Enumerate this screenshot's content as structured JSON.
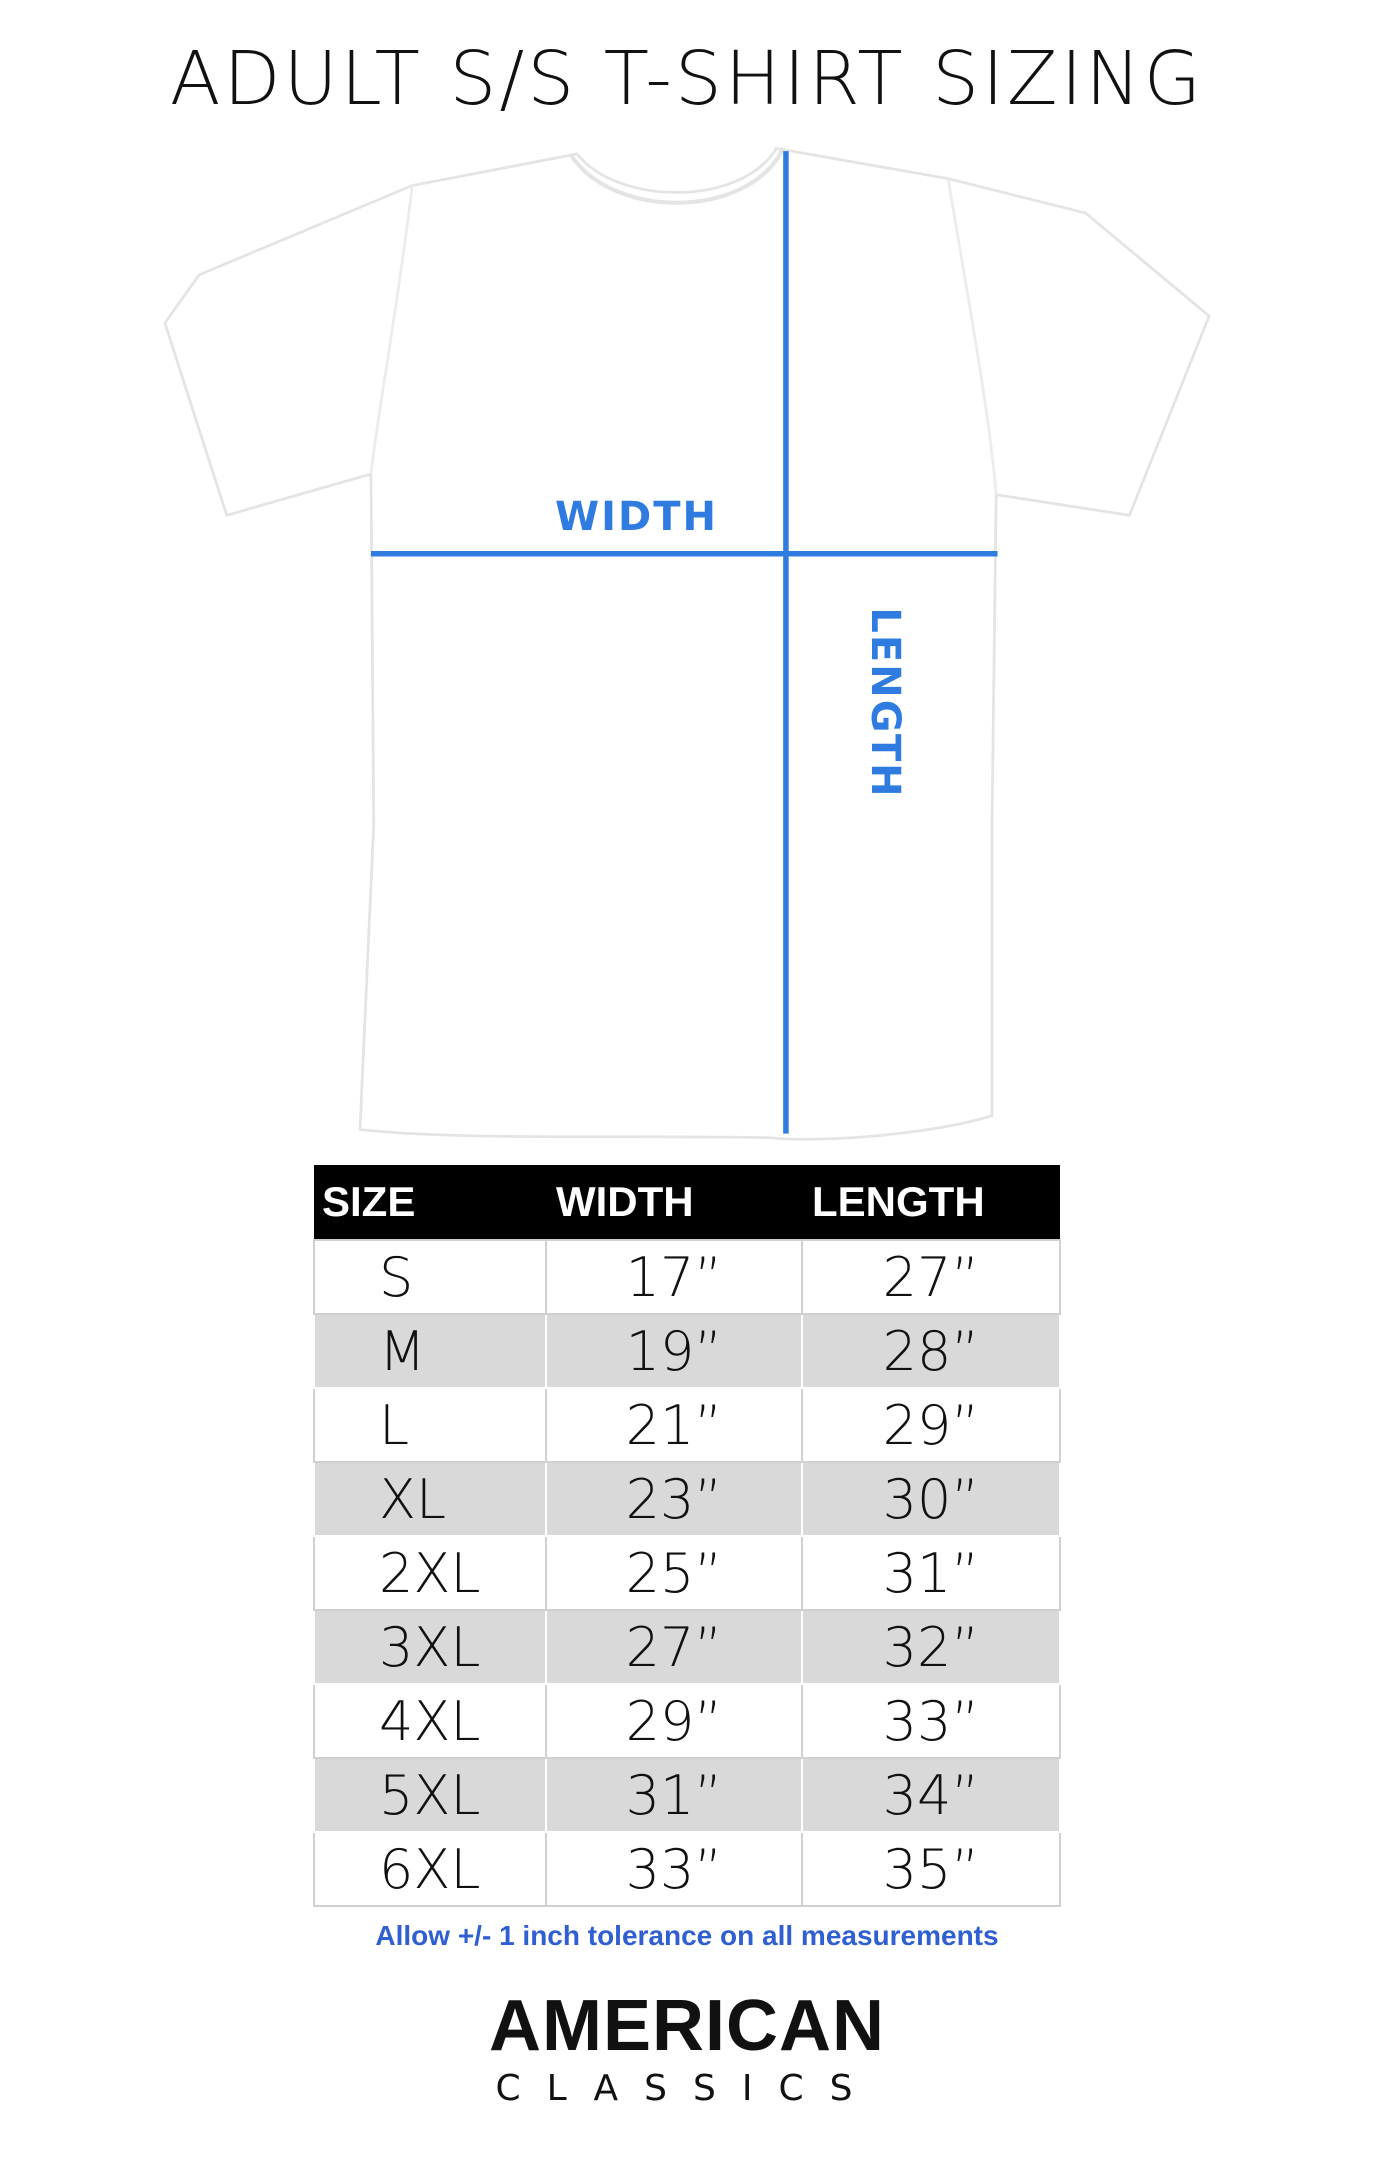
{
  "title": "ADULT S/S T-SHIRT SIZING",
  "diagram": {
    "width_label": "WIDTH",
    "length_label": "LENGTH",
    "line_color": "#2f7be0"
  },
  "table": {
    "headers": [
      "SIZE",
      "WIDTH",
      "LENGTH"
    ],
    "rows": [
      [
        "S",
        "17”",
        "27”"
      ],
      [
        "M",
        "19”",
        "28”"
      ],
      [
        "L",
        "21”",
        "29”"
      ],
      [
        "XL",
        "23”",
        "30”"
      ],
      [
        "2XL",
        "25”",
        "31”"
      ],
      [
        "3XL",
        "27”",
        "32”"
      ],
      [
        "4XL",
        "29”",
        "33”"
      ],
      [
        "5XL",
        "31”",
        "34”"
      ],
      [
        "6XL",
        "33”",
        "35”"
      ]
    ]
  },
  "note": "Allow +/- 1 inch tolerance on all measurements",
  "logo": {
    "line1": "AMERICAN",
    "line2": "CLASSICS"
  }
}
